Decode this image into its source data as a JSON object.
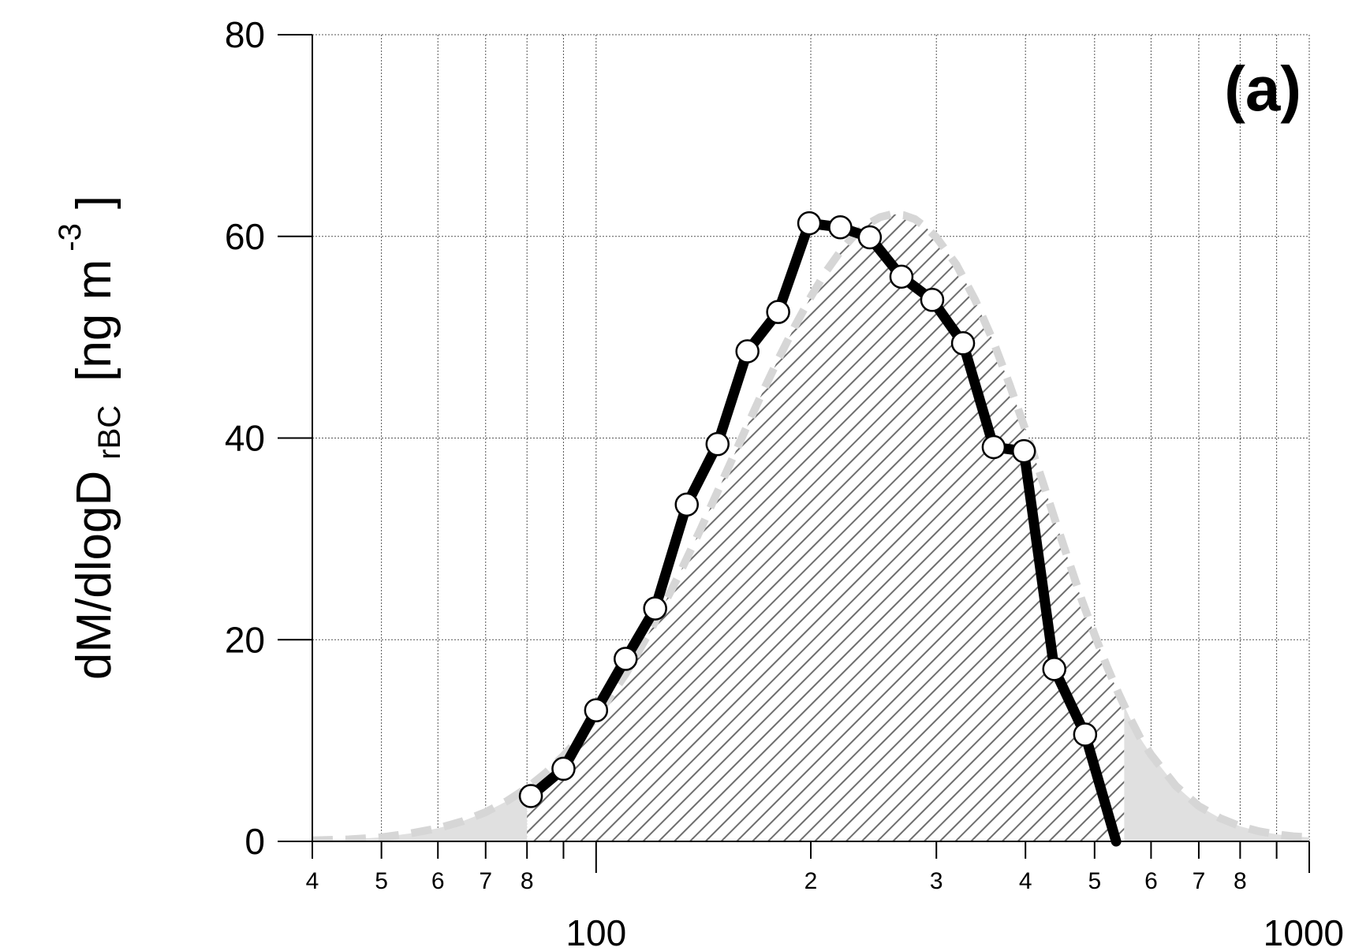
{
  "chart_data": {
    "type": "line",
    "panel_label": "(a)",
    "ylabel": {
      "main": "dM/dlogD",
      "subscript": "rBC",
      "units_open": "[ng m",
      "units_exp": "-3",
      "units_close": "]"
    },
    "xlabel": "",
    "x_scale": "log",
    "xlim": [
      40,
      1000
    ],
    "ylim": [
      0,
      80
    ],
    "grid": true,
    "y_ticks": [
      0,
      20,
      40,
      60,
      80
    ],
    "y_tick_labels": [
      "0",
      "20",
      "40",
      "60",
      "80"
    ],
    "x_major_ticks": [
      100,
      1000
    ],
    "x_major_labels": [
      "100",
      "1000"
    ],
    "x_minor_ticks": [
      40,
      50,
      60,
      70,
      80,
      90,
      200,
      300,
      400,
      500,
      600,
      700,
      800,
      900
    ],
    "x_minor_labels": [
      "4",
      "5",
      "6",
      "7",
      "8",
      "",
      "2",
      "3",
      "4",
      "5",
      "6",
      "7",
      "8",
      ""
    ],
    "fit_curve": {
      "x": [
        40,
        45,
        50,
        55,
        60,
        65,
        70,
        75,
        80,
        85,
        90,
        95,
        100,
        110,
        120,
        130,
        140,
        150,
        160,
        170,
        180,
        190,
        200,
        210,
        220,
        230,
        240,
        250,
        260,
        270,
        280,
        290,
        300,
        320,
        340,
        360,
        380,
        400,
        420,
        440,
        460,
        480,
        500,
        520,
        540,
        560,
        580,
        600,
        650,
        700,
        750,
        800,
        850,
        900,
        950,
        1000
      ],
      "y": [
        0.1,
        0.2,
        0.4,
        0.8,
        1.3,
        2.0,
        2.9,
        4.0,
        5.3,
        6.8,
        8.5,
        10.3,
        12.3,
        16.6,
        21.3,
        26.1,
        30.9,
        35.6,
        40.0,
        44.1,
        47.8,
        51.1,
        54.0,
        56.5,
        58.5,
        60.1,
        61.2,
        61.9,
        62.2,
        62.1,
        61.7,
        60.9,
        59.9,
        57.2,
        53.7,
        49.7,
        45.3,
        40.8,
        36.3,
        31.9,
        27.8,
        23.9,
        20.5,
        17.4,
        14.7,
        12.3,
        10.2,
        8.6,
        5.5,
        3.5,
        2.3,
        1.5,
        1.0,
        0.7,
        0.5,
        0.4
      ]
    },
    "shade_range": [
      80,
      550
    ],
    "series": [
      {
        "x": [
          81,
          90,
          100,
          110,
          121,
          134,
          148,
          163,
          180,
          199,
          220,
          242,
          268,
          296,
          327,
          361,
          398,
          439,
          485,
          536
        ],
        "y": [
          4.5,
          7.2,
          13.0,
          18.1,
          23.1,
          33.4,
          39.4,
          48.6,
          52.5,
          61.3,
          60.9,
          59.9,
          56.0,
          53.7,
          49.4,
          39.1,
          38.7,
          17.1,
          10.6,
          0
        ]
      }
    ]
  }
}
